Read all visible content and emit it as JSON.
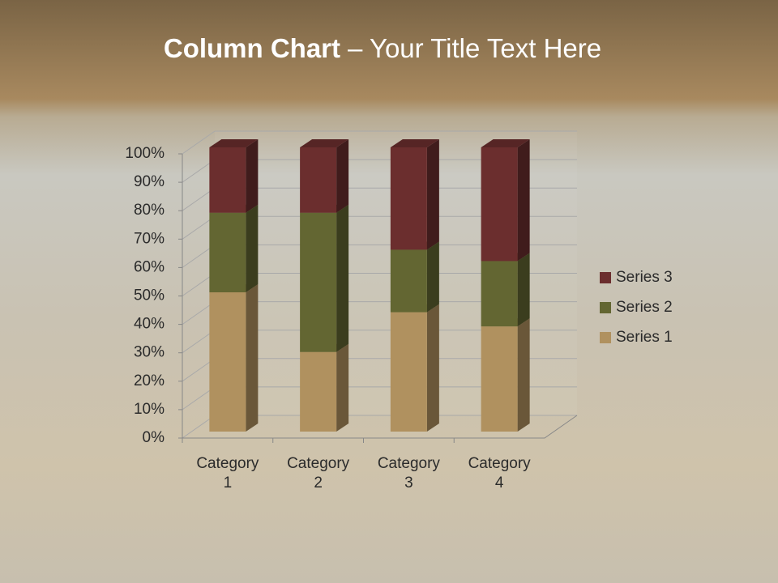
{
  "chart_data": {
    "type": "stacked_column_3d_percent",
    "title_parts": [
      "Column Chart",
      "– Your Title Text Here"
    ],
    "categories": [
      "Category 1",
      "Category 2",
      "Category 3",
      "Category 4"
    ],
    "series": [
      {
        "name": "Series 1",
        "color": "#b0915f",
        "values": [
          49,
          28,
          42,
          37
        ]
      },
      {
        "name": "Series 2",
        "color": "#636632",
        "values": [
          28,
          49,
          22,
          23
        ]
      },
      {
        "name": "Series 3",
        "color": "#6b2e2e",
        "values": [
          23,
          23,
          36,
          40
        ]
      }
    ],
    "ylim": [
      0,
      100
    ],
    "yticks": [
      {
        "value": 0,
        "label": "0%"
      },
      {
        "value": 10,
        "label": "10%"
      },
      {
        "value": 20,
        "label": "20%"
      },
      {
        "value": 30,
        "label": "30%"
      },
      {
        "value": 40,
        "label": "40%"
      },
      {
        "value": 50,
        "label": "50%"
      },
      {
        "value": 60,
        "label": "60%"
      },
      {
        "value": 70,
        "label": "70%"
      },
      {
        "value": 80,
        "label": "80%"
      },
      {
        "value": 90,
        "label": "90%"
      },
      {
        "value": 100,
        "label": "100%"
      }
    ],
    "grid": true,
    "legend": "right"
  }
}
